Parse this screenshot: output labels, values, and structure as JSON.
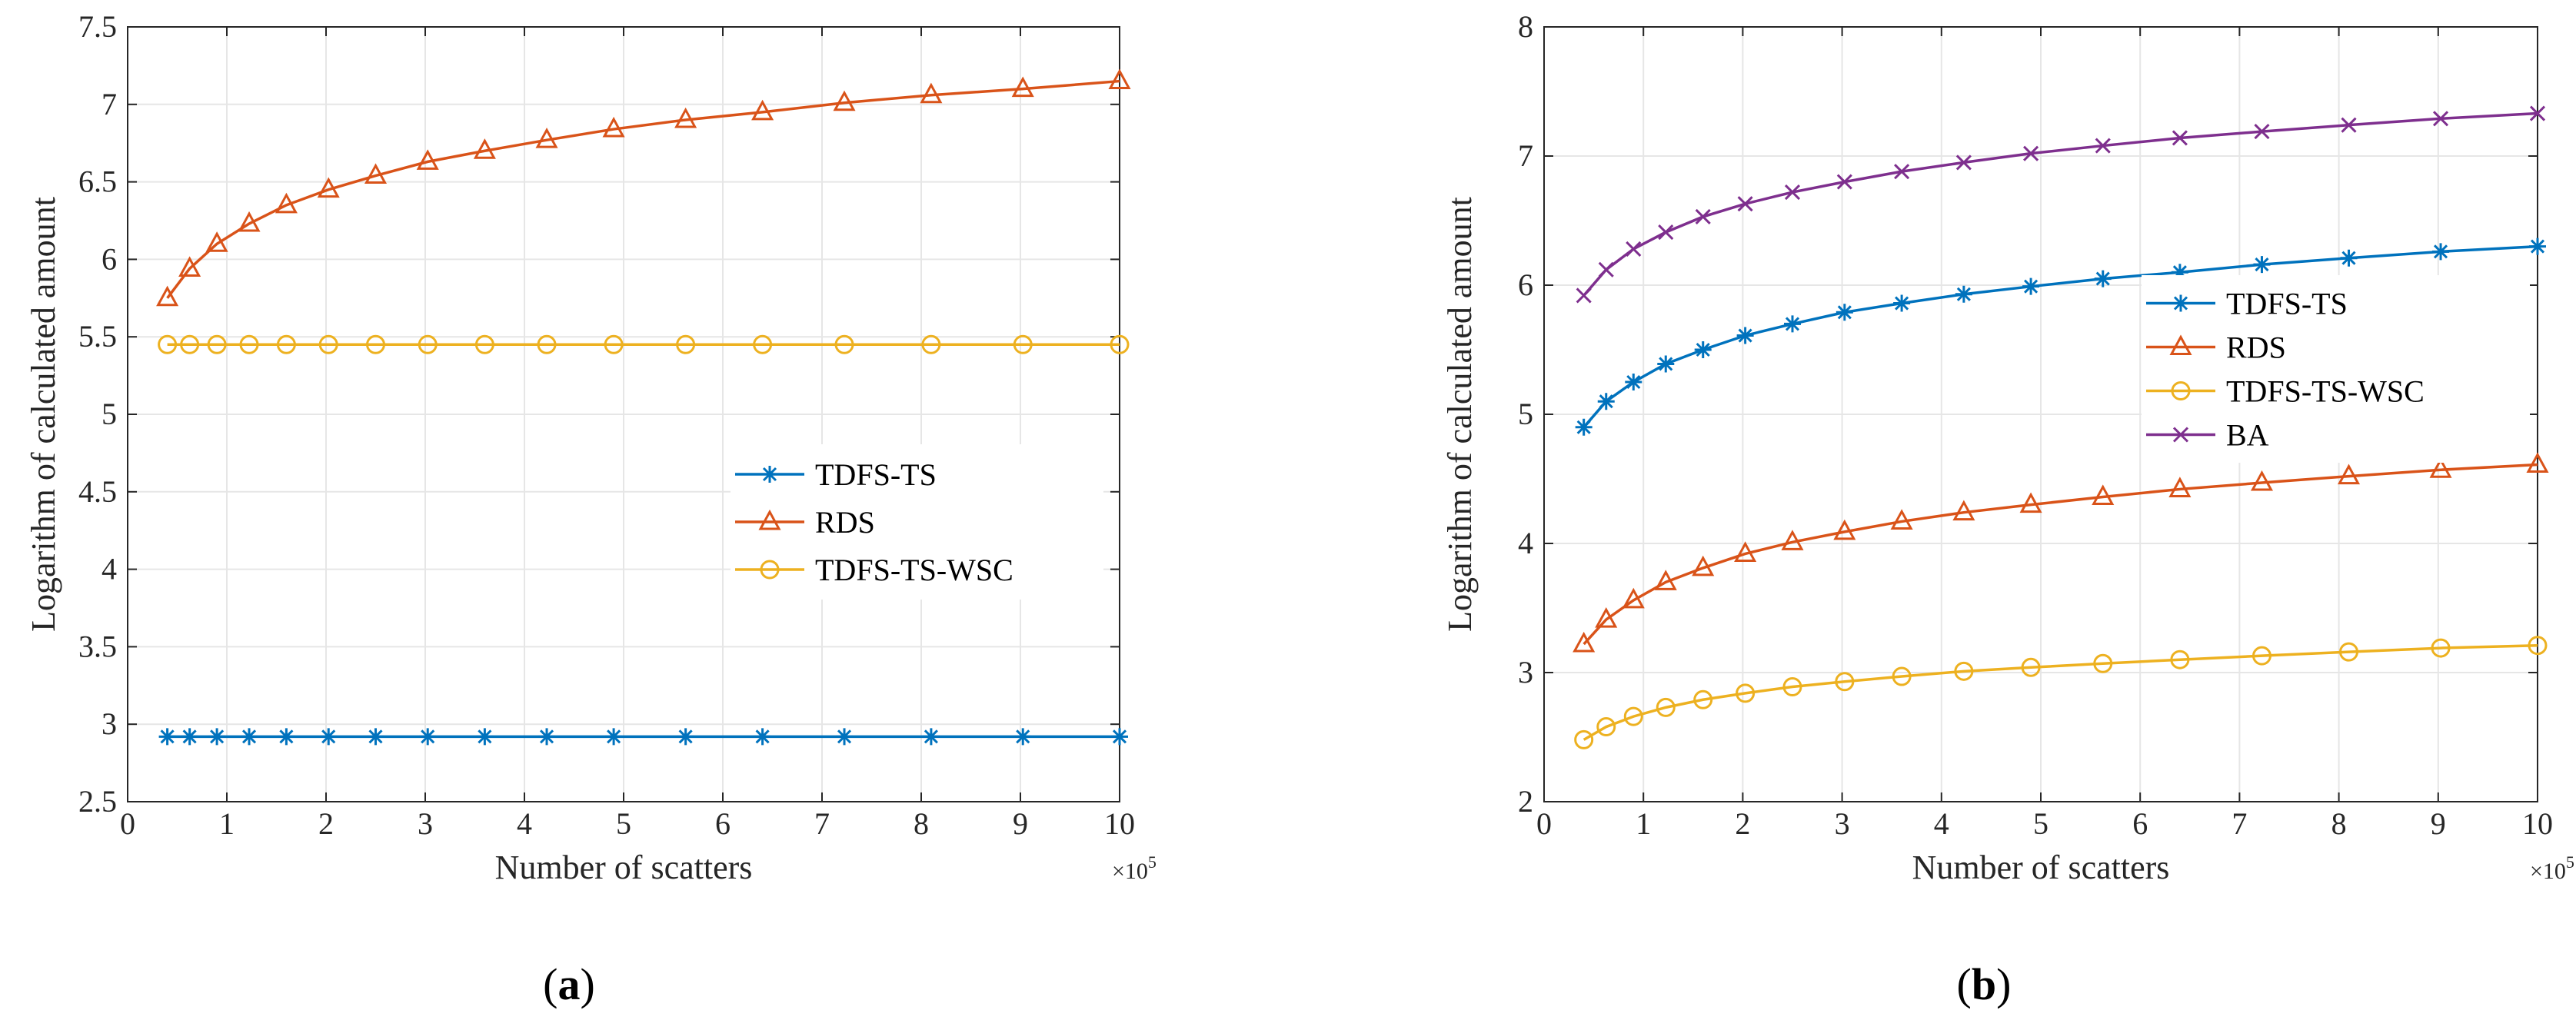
{
  "chart_data": [
    {
      "type": "line",
      "panel_label": "a",
      "xlabel": "Number of scatters",
      "ylabel": "Logarithm of calculated amount",
      "x_multiplier": "×10",
      "x_multiplier_exp": "5",
      "xlim": [
        0,
        10
      ],
      "ylim": [
        2.5,
        7.5
      ],
      "xticks": [
        0,
        1,
        2,
        3,
        4,
        5,
        6,
        7,
        8,
        9,
        10
      ],
      "yticks": [
        2.5,
        3,
        3.5,
        4,
        4.5,
        5,
        5.5,
        6,
        6.5,
        7,
        7.5
      ],
      "legend_position": "center-right",
      "x": [
        0.4,
        0.625,
        0.9,
        1.225,
        1.6,
        2.025,
        2.5,
        3.025,
        3.6,
        4.225,
        4.9,
        5.625,
        6.4,
        7.225,
        8.1,
        9.025,
        10
      ],
      "series": [
        {
          "name": "TDFS-TS",
          "color": "#0072BD",
          "marker": "star",
          "values": [
            2.92,
            2.92,
            2.92,
            2.92,
            2.92,
            2.92,
            2.92,
            2.92,
            2.92,
            2.92,
            2.92,
            2.92,
            2.92,
            2.92,
            2.92,
            2.92,
            2.92
          ]
        },
        {
          "name": "RDS",
          "color": "#D95319",
          "marker": "triangle",
          "values": [
            5.75,
            5.94,
            6.1,
            6.23,
            6.35,
            6.45,
            6.54,
            6.63,
            6.7,
            6.77,
            6.84,
            6.9,
            6.95,
            7.01,
            7.06,
            7.1,
            7.15
          ]
        },
        {
          "name": "TDFS-TS-WSC",
          "color": "#EDB120",
          "marker": "circle",
          "values": [
            5.45,
            5.45,
            5.45,
            5.45,
            5.45,
            5.45,
            5.45,
            5.45,
            5.45,
            5.45,
            5.45,
            5.45,
            5.45,
            5.45,
            5.45,
            5.45,
            5.45
          ]
        }
      ]
    },
    {
      "type": "line",
      "panel_label": "b",
      "xlabel": "Number of scatters",
      "ylabel": "Logarithm of calculated amount",
      "x_multiplier": "×10",
      "x_multiplier_exp": "5",
      "xlim": [
        0,
        10
      ],
      "ylim": [
        2,
        8
      ],
      "xticks": [
        0,
        1,
        2,
        3,
        4,
        5,
        6,
        7,
        8,
        9,
        10
      ],
      "yticks": [
        2,
        3,
        4,
        5,
        6,
        7,
        8
      ],
      "legend_position": "center-right",
      "x": [
        0.4,
        0.625,
        0.9,
        1.225,
        1.6,
        2.025,
        2.5,
        3.025,
        3.6,
        4.225,
        4.9,
        5.625,
        6.4,
        7.225,
        8.1,
        9.025,
        10
      ],
      "series": [
        {
          "name": "TDFS-TS",
          "color": "#0072BD",
          "marker": "star",
          "values": [
            4.9,
            5.1,
            5.25,
            5.39,
            5.5,
            5.61,
            5.7,
            5.79,
            5.86,
            5.93,
            5.99,
            6.05,
            6.1,
            6.16,
            6.21,
            6.26,
            6.3
          ]
        },
        {
          "name": "RDS",
          "color": "#D95319",
          "marker": "triangle",
          "values": [
            3.22,
            3.41,
            3.56,
            3.7,
            3.81,
            3.92,
            4.01,
            4.09,
            4.17,
            4.24,
            4.3,
            4.36,
            4.42,
            4.47,
            4.52,
            4.57,
            4.61
          ]
        },
        {
          "name": "TDFS-TS-WSC",
          "color": "#EDB120",
          "marker": "circle",
          "values": [
            2.48,
            2.58,
            2.66,
            2.73,
            2.79,
            2.84,
            2.89,
            2.93,
            2.97,
            3.01,
            3.04,
            3.07,
            3.1,
            3.13,
            3.16,
            3.19,
            3.21
          ]
        },
        {
          "name": "BA",
          "color": "#7E2F8E",
          "marker": "x",
          "values": [
            5.92,
            6.12,
            6.28,
            6.41,
            6.53,
            6.63,
            6.72,
            6.8,
            6.88,
            6.95,
            7.02,
            7.08,
            7.14,
            7.19,
            7.24,
            7.29,
            7.33
          ]
        }
      ]
    }
  ]
}
